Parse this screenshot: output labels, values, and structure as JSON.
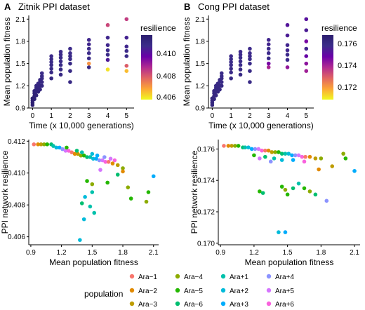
{
  "panels": {
    "A": {
      "letter": "A",
      "title": "Zitnik PPI dataset"
    },
    "B": {
      "letter": "B",
      "title": "Cong PPI dataset"
    }
  },
  "colorbar": {
    "title": "resilience",
    "gradient": [
      "#F0F921",
      "#FCA636",
      "#E16462",
      "#B12A90",
      "#6A00A8",
      "#3B2C8A",
      "#2B1E6E"
    ],
    "A_ticks": [
      "0.406",
      "0.408",
      "0.410"
    ],
    "B_ticks": [
      "0.172",
      "0.174",
      "0.176"
    ]
  },
  "legend": {
    "title": "population",
    "entries": [
      {
        "label": "Ara−1",
        "color": "#F8766D"
      },
      {
        "label": "Ara−2",
        "color": "#E18A00"
      },
      {
        "label": "Ara−3",
        "color": "#BE9C00"
      },
      {
        "label": "Ara−4",
        "color": "#8CAB00"
      },
      {
        "label": "Ara−5",
        "color": "#24B700"
      },
      {
        "label": "Ara−6",
        "color": "#00BE70"
      },
      {
        "label": "Ara+1",
        "color": "#00C1AB"
      },
      {
        "label": "Ara+2",
        "color": "#00BBDA"
      },
      {
        "label": "Ara+3",
        "color": "#00ACFC"
      },
      {
        "label": "Ara+4",
        "color": "#8B93FF"
      },
      {
        "label": "Ara+5",
        "color": "#D575FE"
      },
      {
        "label": "Ara+6",
        "color": "#F962DD"
      }
    ]
  },
  "chart_data": [
    {
      "id": "A-top",
      "type": "scatter",
      "xlabel": "Time (x 10,000 generations)",
      "ylabel": "Mean population fitness",
      "xlim": [
        -0.2,
        5.4
      ],
      "ylim": [
        0.9,
        2.15
      ],
      "xticks": [
        "0",
        "1",
        "2",
        "3",
        "4",
        "5"
      ],
      "yticks": [
        "0.9",
        "1.2",
        "1.5",
        "1.8",
        "2.1"
      ],
      "color_by": "resilience",
      "color_range": [
        0.4055,
        0.412
      ],
      "points": [
        [
          0,
          0.94,
          0.4118
        ],
        [
          0,
          0.97,
          0.4118
        ],
        [
          0,
          1.0,
          0.4118
        ],
        [
          0,
          1.03,
          0.4118
        ],
        [
          0.1,
          1.02,
          0.4117
        ],
        [
          0.1,
          1.06,
          0.4117
        ],
        [
          0.1,
          1.1,
          0.4116
        ],
        [
          0.1,
          1.13,
          0.4115
        ],
        [
          0.2,
          1.07,
          0.4116
        ],
        [
          0.2,
          1.12,
          0.4115
        ],
        [
          0.2,
          1.17,
          0.4114
        ],
        [
          0.2,
          1.2,
          0.4114
        ],
        [
          0.3,
          1.12,
          0.4115
        ],
        [
          0.3,
          1.16,
          0.4114
        ],
        [
          0.3,
          1.2,
          0.4113
        ],
        [
          0.3,
          1.23,
          0.4112
        ],
        [
          0.4,
          1.15,
          0.4114
        ],
        [
          0.4,
          1.2,
          0.4113
        ],
        [
          0.4,
          1.25,
          0.4112
        ],
        [
          0.4,
          1.28,
          0.4112
        ],
        [
          0.5,
          1.2,
          0.4113
        ],
        [
          0.5,
          1.25,
          0.4112
        ],
        [
          0.5,
          1.3,
          0.4111
        ],
        [
          0.5,
          1.33,
          0.4111
        ],
        [
          0.5,
          1.37,
          0.411
        ],
        [
          1,
          1.3,
          0.4113
        ],
        [
          1,
          1.38,
          0.4112
        ],
        [
          1,
          1.43,
          0.4111
        ],
        [
          1,
          1.48,
          0.4111
        ],
        [
          1,
          1.52,
          0.411
        ],
        [
          1,
          1.56,
          0.411
        ],
        [
          1,
          1.6,
          0.4109
        ],
        [
          1.5,
          1.35,
          0.4112
        ],
        [
          1.5,
          1.42,
          0.4111
        ],
        [
          1.5,
          1.48,
          0.4111
        ],
        [
          1.5,
          1.53,
          0.411
        ],
        [
          1.5,
          1.58,
          0.411
        ],
        [
          1.5,
          1.62,
          0.4109
        ],
        [
          1.5,
          1.66,
          0.4109
        ],
        [
          2,
          1.25,
          0.4112
        ],
        [
          2,
          1.4,
          0.4111
        ],
        [
          2,
          1.5,
          0.4111
        ],
        [
          2,
          1.56,
          0.411
        ],
        [
          2,
          1.6,
          0.411
        ],
        [
          2,
          1.64,
          0.4109
        ],
        [
          2,
          1.7,
          0.4109
        ],
        [
          3,
          1.45,
          0.4111
        ],
        [
          3,
          1.57,
          0.411
        ],
        [
          3,
          1.64,
          0.4109
        ],
        [
          3,
          1.7,
          0.4109
        ],
        [
          3,
          1.76,
          0.4108
        ],
        [
          3,
          1.82,
          0.4108
        ],
        [
          3,
          1.5,
          0.4069
        ],
        [
          4,
          1.42,
          0.4058
        ],
        [
          4,
          1.55,
          0.4105
        ],
        [
          4,
          1.62,
          0.411
        ],
        [
          4,
          1.68,
          0.4109
        ],
        [
          4,
          1.75,
          0.4108
        ],
        [
          4,
          1.85,
          0.4108
        ],
        [
          4,
          2.02,
          0.4082
        ],
        [
          5,
          1.4,
          0.4063
        ],
        [
          5,
          1.47,
          0.4078
        ],
        [
          5,
          1.6,
          0.411
        ],
        [
          5,
          1.67,
          0.4109
        ],
        [
          5,
          1.73,
          0.4108
        ],
        [
          5,
          1.85,
          0.4107
        ],
        [
          5,
          2.1,
          0.4084
        ]
      ]
    },
    {
      "id": "B-top",
      "type": "scatter",
      "xlabel": "Time (x 10,000 generations)",
      "ylabel": "Mean population fitness",
      "xlim": [
        -0.2,
        5.4
      ],
      "ylim": [
        0.9,
        2.15
      ],
      "xticks": [
        "0",
        "1",
        "2",
        "3",
        "4",
        "5"
      ],
      "yticks": [
        "0.9",
        "1.2",
        "1.5",
        "1.8",
        "2.1"
      ],
      "color_by": "resilience",
      "color_range": [
        0.1705,
        0.1768
      ],
      "points": [
        [
          0,
          0.94,
          0.1762
        ],
        [
          0,
          0.97,
          0.1762
        ],
        [
          0,
          1.0,
          0.1762
        ],
        [
          0,
          1.03,
          0.1762
        ],
        [
          0.1,
          1.02,
          0.1762
        ],
        [
          0.1,
          1.06,
          0.1761
        ],
        [
          0.1,
          1.1,
          0.1761
        ],
        [
          0.1,
          1.13,
          0.1761
        ],
        [
          0.2,
          1.07,
          0.1761
        ],
        [
          0.2,
          1.12,
          0.1761
        ],
        [
          0.2,
          1.17,
          0.176
        ],
        [
          0.2,
          1.2,
          0.176
        ],
        [
          0.3,
          1.12,
          0.1761
        ],
        [
          0.3,
          1.16,
          0.176
        ],
        [
          0.3,
          1.2,
          0.176
        ],
        [
          0.3,
          1.23,
          0.176
        ],
        [
          0.4,
          1.15,
          0.176
        ],
        [
          0.4,
          1.2,
          0.176
        ],
        [
          0.4,
          1.25,
          0.1759
        ],
        [
          0.4,
          1.28,
          0.1759
        ],
        [
          0.5,
          1.2,
          0.176
        ],
        [
          0.5,
          1.25,
          0.1759
        ],
        [
          0.5,
          1.3,
          0.1759
        ],
        [
          0.5,
          1.33,
          0.1758
        ],
        [
          0.5,
          1.37,
          0.1758
        ],
        [
          1,
          1.3,
          0.176
        ],
        [
          1,
          1.38,
          0.1759
        ],
        [
          1,
          1.43,
          0.1759
        ],
        [
          1,
          1.48,
          0.1758
        ],
        [
          1,
          1.52,
          0.1758
        ],
        [
          1,
          1.56,
          0.1758
        ],
        [
          1,
          1.6,
          0.1757
        ],
        [
          1.5,
          1.35,
          0.176
        ],
        [
          1.5,
          1.42,
          0.1759
        ],
        [
          1.5,
          1.48,
          0.1758
        ],
        [
          1.5,
          1.53,
          0.1758
        ],
        [
          1.5,
          1.58,
          0.1758
        ],
        [
          1.5,
          1.62,
          0.1757
        ],
        [
          1.5,
          1.66,
          0.1757
        ],
        [
          2,
          1.25,
          0.1759
        ],
        [
          2,
          1.4,
          0.1759
        ],
        [
          2,
          1.5,
          0.1758
        ],
        [
          2,
          1.56,
          0.1758
        ],
        [
          2,
          1.6,
          0.1757
        ],
        [
          2,
          1.64,
          0.1757
        ],
        [
          2,
          1.7,
          0.1757
        ],
        [
          3,
          1.45,
          0.1738
        ],
        [
          3,
          1.57,
          0.1758
        ],
        [
          3,
          1.64,
          0.1757
        ],
        [
          3,
          1.7,
          0.1757
        ],
        [
          3,
          1.76,
          0.1756
        ],
        [
          3,
          1.82,
          0.1756
        ],
        [
          3,
          1.5,
          0.1745
        ],
        [
          4,
          1.45,
          0.1741
        ],
        [
          4,
          1.55,
          0.1757
        ],
        [
          4,
          1.62,
          0.1757
        ],
        [
          4,
          1.68,
          0.1756
        ],
        [
          4,
          1.75,
          0.1756
        ],
        [
          4,
          1.88,
          0.1754
        ],
        [
          4,
          2.02,
          0.1752
        ],
        [
          5,
          1.4,
          0.1739
        ],
        [
          5,
          1.5,
          0.1742
        ],
        [
          5,
          1.6,
          0.1748
        ],
        [
          5,
          1.7,
          0.1756
        ],
        [
          5,
          1.8,
          0.1745
        ],
        [
          5,
          1.95,
          0.1754
        ],
        [
          5,
          2.1,
          0.1751
        ]
      ]
    },
    {
      "id": "A-bottom",
      "type": "scatter",
      "xlabel": "Mean population fitness",
      "ylabel": "PPI network resilience",
      "xlim": [
        0.88,
        2.15
      ],
      "ylim": [
        0.4055,
        0.4121
      ],
      "xticks": [
        "0.9",
        "1.2",
        "1.5",
        "1.8",
        "2.1"
      ],
      "yticks": [
        "0.406",
        "0.408",
        "0.410",
        "0.412"
      ],
      "color_by": "population",
      "points": [
        [
          0.93,
          0.4118,
          0
        ],
        [
          0.97,
          0.4118,
          1
        ],
        [
          1.0,
          0.4118,
          2
        ],
        [
          1.03,
          0.4118,
          3
        ],
        [
          1.06,
          0.4118,
          4
        ],
        [
          1.1,
          0.4118,
          5
        ],
        [
          1.12,
          0.4117,
          6
        ],
        [
          1.15,
          0.4116,
          7
        ],
        [
          1.18,
          0.4116,
          8
        ],
        [
          1.21,
          0.4115,
          9
        ],
        [
          1.24,
          0.4114,
          10
        ],
        [
          1.27,
          0.4114,
          11
        ],
        [
          1.3,
          0.4113,
          0
        ],
        [
          1.33,
          0.4112,
          1
        ],
        [
          1.36,
          0.4112,
          2
        ],
        [
          1.39,
          0.4111,
          3
        ],
        [
          1.42,
          0.4111,
          4
        ],
        [
          1.45,
          0.411,
          5
        ],
        [
          1.48,
          0.411,
          6
        ],
        [
          1.51,
          0.4109,
          7
        ],
        [
          1.54,
          0.4109,
          8
        ],
        [
          1.57,
          0.4108,
          9
        ],
        [
          1.6,
          0.4108,
          10
        ],
        [
          1.63,
          0.4107,
          11
        ],
        [
          1.66,
          0.4107,
          0
        ],
        [
          1.7,
          0.4106,
          1
        ],
        [
          1.75,
          0.4105,
          2
        ],
        [
          1.8,
          0.4103,
          3
        ],
        [
          1.25,
          0.4116,
          4
        ],
        [
          1.35,
          0.4114,
          5
        ],
        [
          1.4,
          0.4113,
          6
        ],
        [
          1.5,
          0.4112,
          7
        ],
        [
          1.55,
          0.4111,
          8
        ],
        [
          1.62,
          0.411,
          9
        ],
        [
          1.68,
          0.4109,
          10
        ],
        [
          1.72,
          0.4108,
          11
        ],
        [
          1.45,
          0.4095,
          4
        ],
        [
          1.5,
          0.4093,
          3
        ],
        [
          1.5,
          0.4088,
          6
        ],
        [
          1.43,
          0.4085,
          7
        ],
        [
          1.4,
          0.4081,
          5
        ],
        [
          1.48,
          0.4079,
          6
        ],
        [
          1.52,
          0.4075,
          6
        ],
        [
          1.42,
          0.4071,
          7
        ],
        [
          1.38,
          0.4058,
          7
        ],
        [
          1.65,
          0.4094,
          4
        ],
        [
          1.85,
          0.4091,
          3
        ],
        [
          1.88,
          0.4084,
          4
        ],
        [
          2.05,
          0.4088,
          4
        ],
        [
          2.03,
          0.4082,
          3
        ],
        [
          2.1,
          0.4098,
          8
        ],
        [
          1.75,
          0.4099,
          5
        ],
        [
          1.8,
          0.4101,
          1
        ],
        [
          1.58,
          0.4102,
          10
        ]
      ]
    },
    {
      "id": "B-bottom",
      "type": "scatter",
      "xlabel": "Mean population fitness",
      "ylabel": "PPI network resilience",
      "xlim": [
        0.88,
        2.15
      ],
      "ylim": [
        0.1699,
        0.1766
      ],
      "xticks": [
        "0.9",
        "1.2",
        "1.5",
        "1.8",
        "2.1"
      ],
      "yticks": [
        "0.170",
        "0.172",
        "0.174",
        "0.176"
      ],
      "color_by": "population",
      "points": [
        [
          0.93,
          0.1762,
          0
        ],
        [
          0.97,
          0.1762,
          1
        ],
        [
          1.0,
          0.1762,
          2
        ],
        [
          1.03,
          0.1762,
          3
        ],
        [
          1.06,
          0.1762,
          4
        ],
        [
          1.1,
          0.1761,
          5
        ],
        [
          1.12,
          0.1761,
          6
        ],
        [
          1.15,
          0.1761,
          7
        ],
        [
          1.18,
          0.176,
          8
        ],
        [
          1.21,
          0.176,
          9
        ],
        [
          1.24,
          0.176,
          10
        ],
        [
          1.27,
          0.1759,
          11
        ],
        [
          1.3,
          0.1759,
          0
        ],
        [
          1.33,
          0.1759,
          1
        ],
        [
          1.36,
          0.1758,
          2
        ],
        [
          1.39,
          0.1758,
          3
        ],
        [
          1.42,
          0.1758,
          4
        ],
        [
          1.45,
          0.1757,
          5
        ],
        [
          1.48,
          0.1757,
          6
        ],
        [
          1.51,
          0.1757,
          7
        ],
        [
          1.54,
          0.1756,
          8
        ],
        [
          1.57,
          0.1756,
          9
        ],
        [
          1.6,
          0.1756,
          10
        ],
        [
          1.63,
          0.1755,
          11
        ],
        [
          1.66,
          0.1755,
          0
        ],
        [
          1.7,
          0.1755,
          1
        ],
        [
          1.75,
          0.1754,
          2
        ],
        [
          1.8,
          0.1754,
          3
        ],
        [
          1.2,
          0.1756,
          4
        ],
        [
          1.3,
          0.1755,
          5
        ],
        [
          1.38,
          0.1754,
          6
        ],
        [
          1.45,
          0.1753,
          7
        ],
        [
          1.25,
          0.1754,
          10
        ],
        [
          1.35,
          0.1752,
          9
        ],
        [
          1.55,
          0.1753,
          8
        ],
        [
          1.65,
          0.1752,
          11
        ],
        [
          1.25,
          0.1733,
          4
        ],
        [
          1.28,
          0.1732,
          5
        ],
        [
          1.45,
          0.1736,
          4
        ],
        [
          1.48,
          0.1734,
          3
        ],
        [
          1.5,
          0.1731,
          4
        ],
        [
          1.55,
          0.1735,
          5
        ],
        [
          1.6,
          0.1738,
          6
        ],
        [
          1.65,
          0.1735,
          4
        ],
        [
          1.7,
          0.1733,
          3
        ],
        [
          1.75,
          0.1731,
          5
        ],
        [
          1.42,
          0.1707,
          7
        ],
        [
          1.48,
          0.1707,
          8
        ],
        [
          1.85,
          0.1727,
          9
        ],
        [
          2.0,
          0.1757,
          3
        ],
        [
          2.02,
          0.1754,
          4
        ],
        [
          2.1,
          0.1746,
          8
        ],
        [
          1.9,
          0.1749,
          2
        ],
        [
          1.78,
          0.1747,
          1
        ]
      ]
    }
  ]
}
